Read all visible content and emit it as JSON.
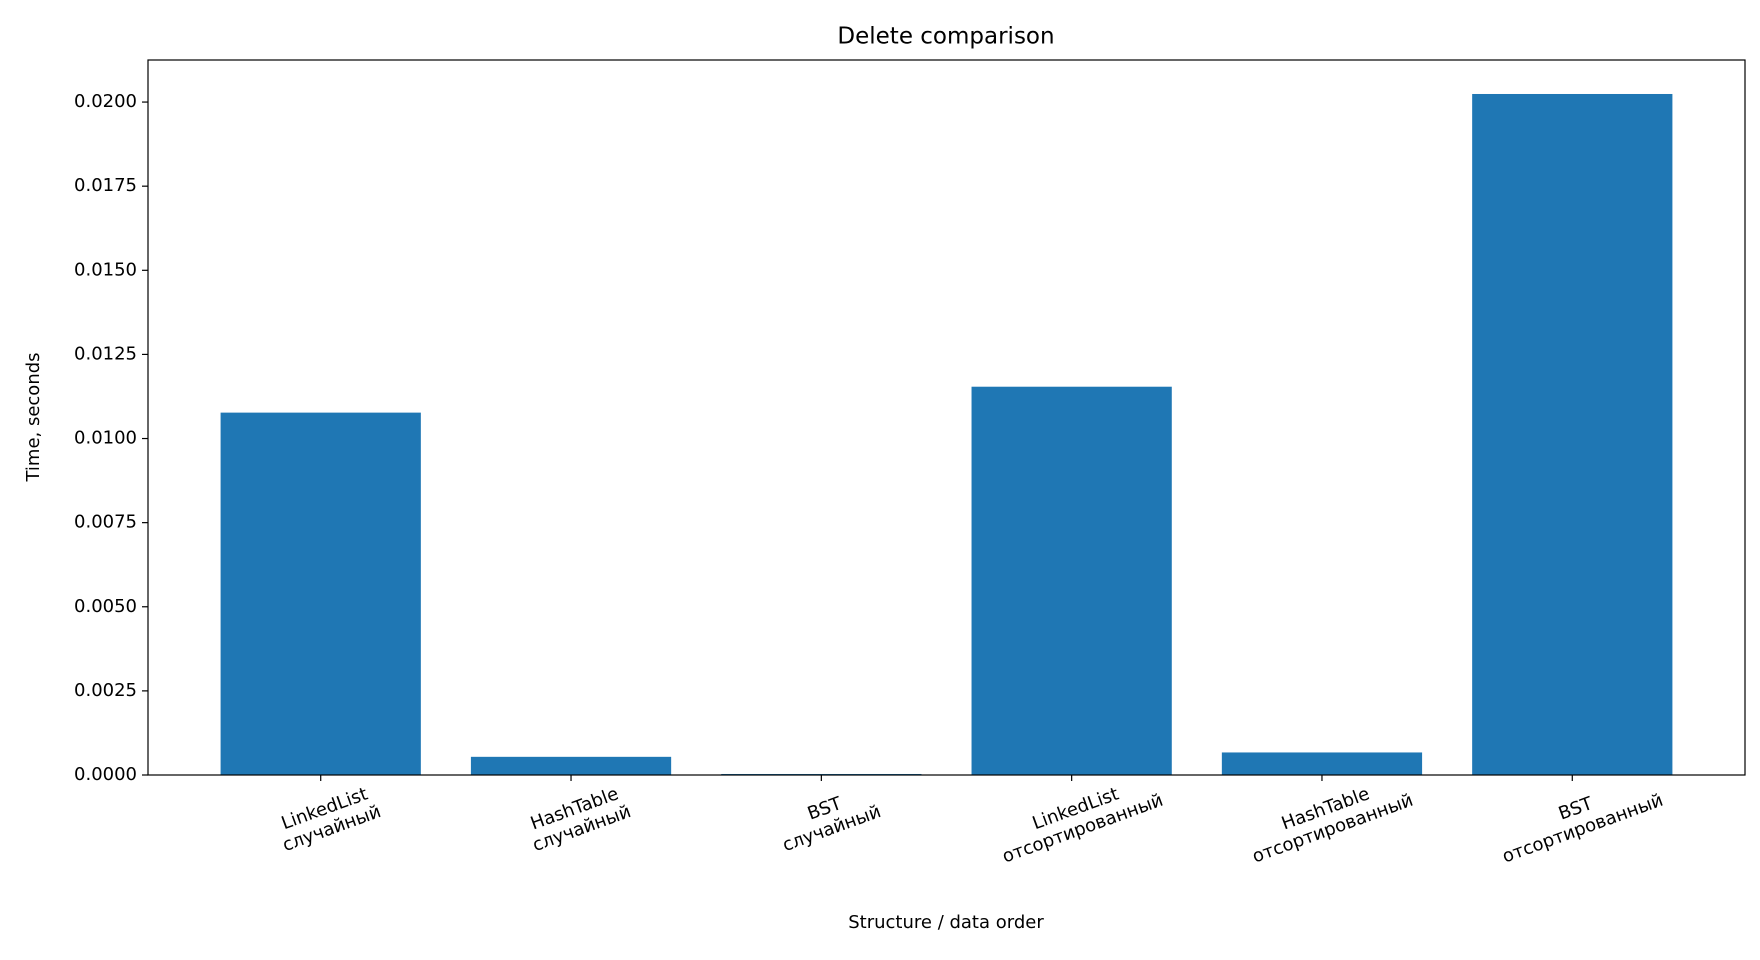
{
  "chart_data": {
    "type": "bar",
    "title": "Delete comparison",
    "x_label": "Structure / data order",
    "y_label": "Time, seconds",
    "categories": [
      "LinkedList\nслучайный",
      "HashTable\nслучайный",
      "BST\nслучайный",
      "LinkedList\nотсортированный",
      "HashTable\nотсортированный",
      "BST\nотсортированный"
    ],
    "values": [
      0.01077,
      0.00054,
      3e-05,
      0.01154,
      0.00067,
      0.02024
    ],
    "color": "#1f77b4",
    "ylim": [
      0,
      0.02125
    ],
    "yticks": [
      {
        "value": 0,
        "label": "0.0000"
      },
      {
        "value": 0.0025,
        "label": "0.0025"
      },
      {
        "value": 0.005,
        "label": "0.0050"
      },
      {
        "value": 0.0075,
        "label": "0.0075"
      },
      {
        "value": 0.01,
        "label": "0.0100"
      },
      {
        "value": 0.0125,
        "label": "0.0125"
      },
      {
        "value": 0.015,
        "label": "0.0150"
      },
      {
        "value": 0.0175,
        "label": "0.0175"
      },
      {
        "value": 0.02,
        "label": "0.0200"
      }
    ],
    "grid": false
  }
}
